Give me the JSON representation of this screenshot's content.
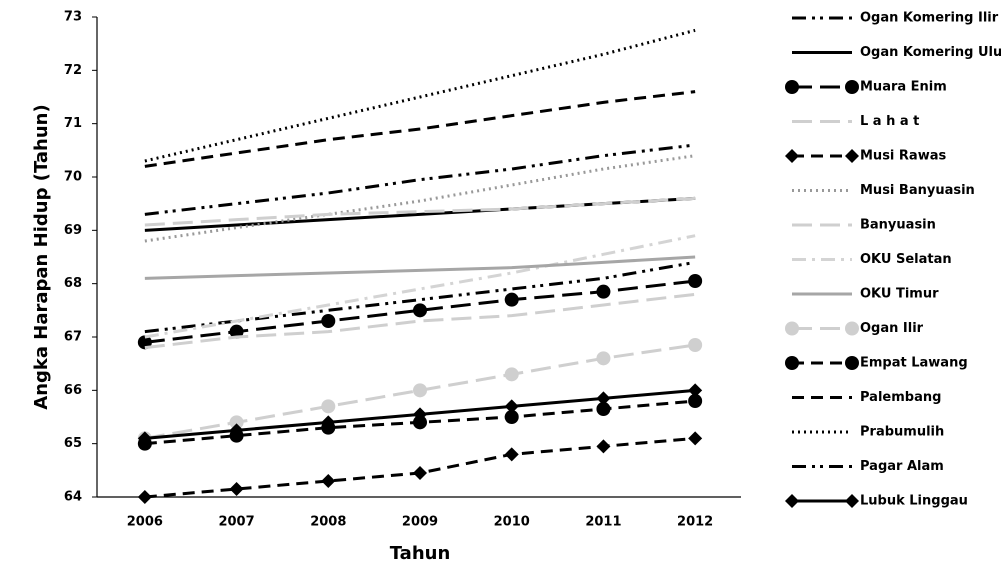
{
  "chart_data": {
    "type": "line",
    "x_label": "Tahun",
    "y_label": "Angka Harapan Hidup (Tahun)",
    "categories": [
      "2006",
      "2007",
      "2008",
      "2009",
      "2010",
      "2011",
      "2012"
    ],
    "ylim": [
      64,
      73
    ],
    "yticks": [
      64,
      65,
      66,
      67,
      68,
      69,
      70,
      71,
      72,
      73
    ],
    "grid": false,
    "legend": "right",
    "series": [
      {
        "name": "Ogan Komering Ilir",
        "color": "#000000",
        "dash": "dashdotdot",
        "marker": "none",
        "values": [
          67.1,
          67.3,
          67.5,
          67.7,
          67.9,
          68.1,
          68.4
        ]
      },
      {
        "name": "Ogan Komering Ulu",
        "color": "#000000",
        "dash": "solid",
        "marker": "none",
        "values": [
          69.0,
          69.1,
          69.2,
          69.3,
          69.4,
          69.5,
          69.6
        ]
      },
      {
        "name": "Muara Enim",
        "color": "#000000",
        "dash": "longdash",
        "marker": "circle",
        "values": [
          66.9,
          67.1,
          67.3,
          67.5,
          67.7,
          67.85,
          68.05
        ]
      },
      {
        "name": "L a h a t",
        "color": "#cfcfcf",
        "dash": "longdash",
        "marker": "none",
        "values": [
          66.8,
          67.0,
          67.1,
          67.3,
          67.4,
          67.6,
          67.8
        ]
      },
      {
        "name": "Musi Rawas",
        "color": "#000000",
        "dash": "dashed",
        "marker": "diamond",
        "values": [
          64.0,
          64.15,
          64.3,
          64.45,
          64.8,
          64.95,
          65.1
        ]
      },
      {
        "name": "Musi Banyuasin",
        "color": "#999999",
        "dash": "dotted",
        "marker": "none",
        "values": [
          68.8,
          69.05,
          69.3,
          69.55,
          69.85,
          70.15,
          70.4
        ]
      },
      {
        "name": "Banyuasin",
        "color": "#cfcfcf",
        "dash": "longdash",
        "marker": "none",
        "values": [
          69.1,
          69.2,
          69.3,
          69.35,
          69.4,
          69.5,
          69.6
        ]
      },
      {
        "name": "OKU Selatan",
        "color": "#d4d4d4",
        "dash": "dashdot",
        "marker": "none",
        "values": [
          67.0,
          67.3,
          67.6,
          67.9,
          68.2,
          68.55,
          68.9
        ]
      },
      {
        "name": "OKU Timur",
        "color": "#a6a6a6",
        "dash": "solid",
        "marker": "none",
        "values": [
          68.1,
          68.15,
          68.2,
          68.25,
          68.3,
          68.4,
          68.5
        ]
      },
      {
        "name": "Ogan Ilir",
        "color": "#cfcfcf",
        "dash": "longdash",
        "marker": "circle",
        "values": [
          65.1,
          65.4,
          65.7,
          66.0,
          66.3,
          66.6,
          66.85
        ]
      },
      {
        "name": "Empat Lawang",
        "color": "#000000",
        "dash": "dashed",
        "marker": "circle",
        "values": [
          65.0,
          65.15,
          65.3,
          65.4,
          65.5,
          65.65,
          65.8
        ]
      },
      {
        "name": "Palembang",
        "color": "#000000",
        "dash": "dashed",
        "marker": "none",
        "values": [
          70.2,
          70.45,
          70.7,
          70.9,
          71.15,
          71.4,
          71.6
        ]
      },
      {
        "name": "Prabumulih",
        "color": "#000000",
        "dash": "dotted",
        "marker": "none",
        "values": [
          70.3,
          70.7,
          71.1,
          71.5,
          71.9,
          72.3,
          72.75
        ]
      },
      {
        "name": "Pagar Alam",
        "color": "#000000",
        "dash": "dashdotdot",
        "marker": "none",
        "values": [
          69.3,
          69.5,
          69.7,
          69.95,
          70.15,
          70.4,
          70.6
        ]
      },
      {
        "name": "Lubuk Linggau",
        "color": "#000000",
        "dash": "solid",
        "marker": "diamond",
        "values": [
          65.1,
          65.25,
          65.4,
          65.55,
          65.7,
          65.85,
          66.0
        ]
      }
    ]
  }
}
